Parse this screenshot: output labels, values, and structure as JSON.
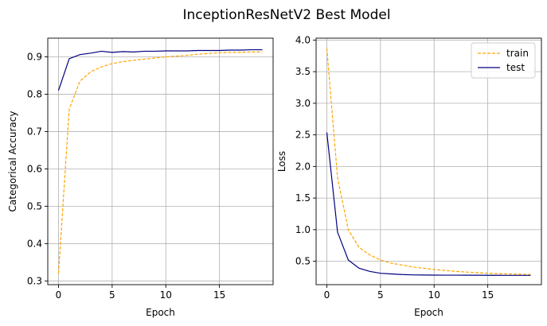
{
  "figure": {
    "title": "InceptionResNetV2 Best Model"
  },
  "chart_data": [
    {
      "type": "line",
      "xlabel": "Epoch",
      "ylabel": "Categorical Accuracy",
      "xlim": [
        -1,
        20
      ],
      "ylim": [
        0.29,
        0.95
      ],
      "xticks": [
        0,
        5,
        10,
        15
      ],
      "yticks": [
        0.3,
        0.4,
        0.5,
        0.6,
        0.7,
        0.8,
        0.9
      ],
      "grid": true,
      "legend": null,
      "x": [
        0,
        1,
        2,
        3,
        4,
        5,
        6,
        7,
        8,
        9,
        10,
        11,
        12,
        13,
        14,
        15,
        16,
        17,
        18,
        19
      ],
      "series": [
        {
          "color": "#FFA500",
          "dash": "dashed",
          "values": [
            0.32,
            0.76,
            0.835,
            0.86,
            0.873,
            0.882,
            0.887,
            0.891,
            0.894,
            0.897,
            0.9,
            0.902,
            0.904,
            0.907,
            0.909,
            0.911,
            0.912,
            0.912,
            0.913,
            0.913
          ]
        },
        {
          "color": "#000080",
          "dash": "solid",
          "values": [
            0.81,
            0.895,
            0.906,
            0.91,
            0.915,
            0.912,
            0.914,
            0.913,
            0.915,
            0.915,
            0.916,
            0.916,
            0.916,
            0.917,
            0.917,
            0.917,
            0.918,
            0.918,
            0.919,
            0.919
          ]
        }
      ]
    },
    {
      "type": "line",
      "xlabel": "Epoch",
      "ylabel": "Loss",
      "xlim": [
        -1,
        20
      ],
      "ylim": [
        0.13,
        4.03
      ],
      "xticks": [
        0,
        5,
        10,
        15
      ],
      "yticks": [
        0.5,
        1.0,
        1.5,
        2.0,
        2.5,
        3.0,
        3.5,
        4.0
      ],
      "grid": true,
      "legend": "top-right",
      "x": [
        0,
        1,
        2,
        3,
        4,
        5,
        6,
        7,
        8,
        9,
        10,
        11,
        12,
        13,
        14,
        15,
        16,
        17,
        18,
        19
      ],
      "series": [
        {
          "name": "train",
          "color": "#FFA500",
          "dash": "dashed",
          "values": [
            3.87,
            1.82,
            1.0,
            0.72,
            0.6,
            0.52,
            0.47,
            0.44,
            0.41,
            0.39,
            0.37,
            0.355,
            0.34,
            0.33,
            0.32,
            0.31,
            0.305,
            0.3,
            0.295,
            0.29
          ]
        },
        {
          "name": "test",
          "color": "#000080",
          "dash": "solid",
          "values": [
            2.54,
            0.96,
            0.52,
            0.39,
            0.34,
            0.31,
            0.3,
            0.29,
            0.285,
            0.283,
            0.281,
            0.28,
            0.28,
            0.279,
            0.279,
            0.278,
            0.278,
            0.277,
            0.277,
            0.277
          ]
        }
      ]
    }
  ]
}
